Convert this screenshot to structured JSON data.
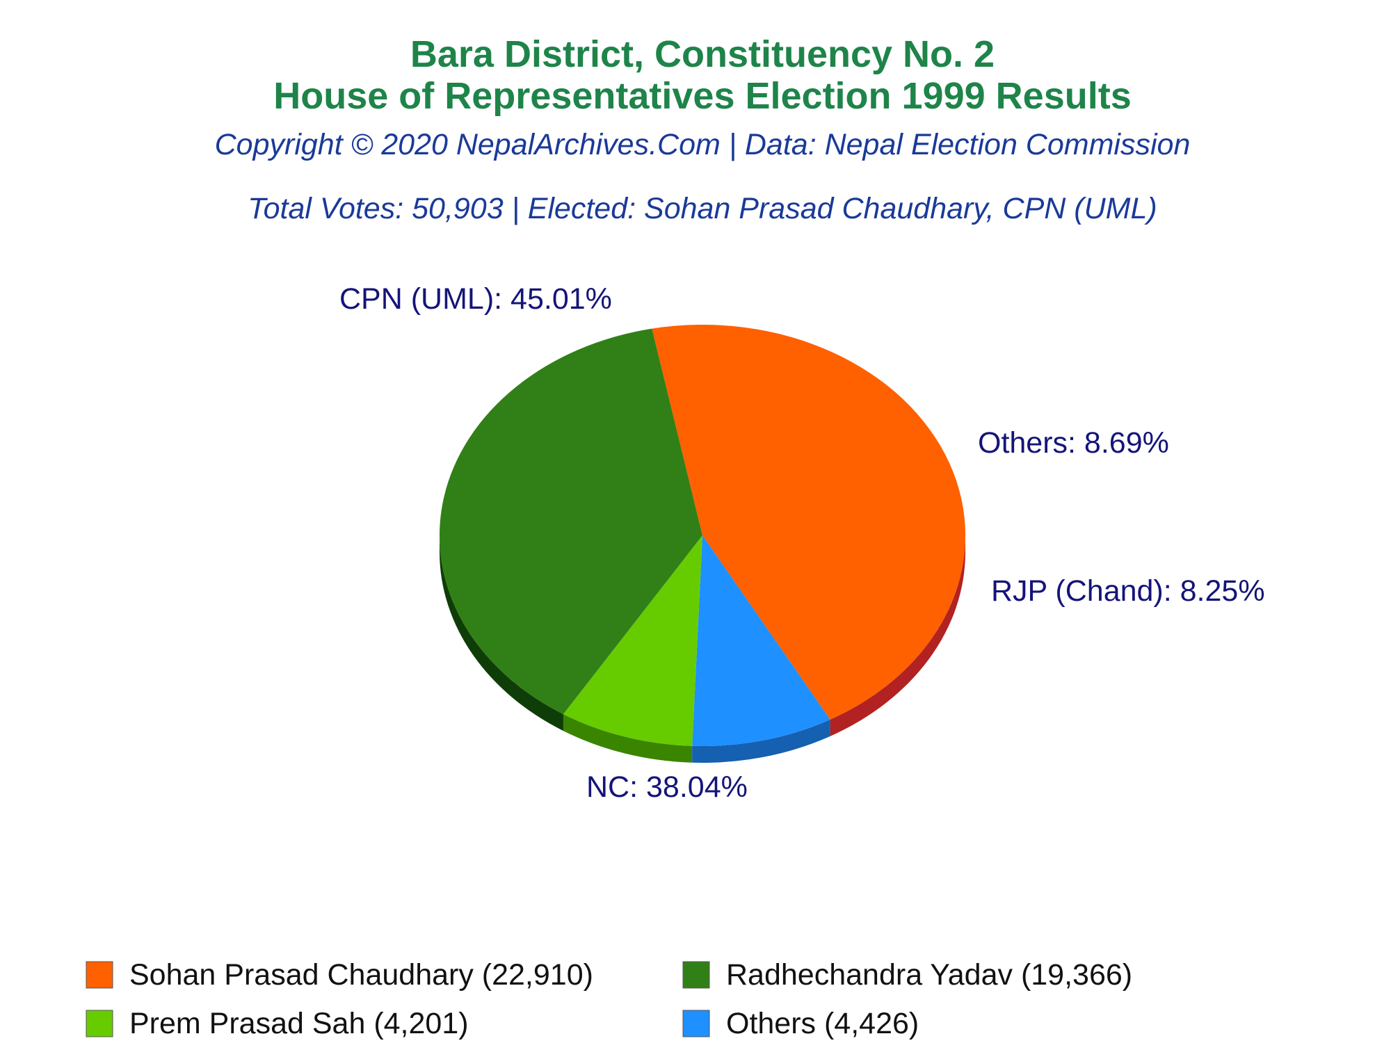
{
  "chart_data": {
    "type": "pie",
    "title_lines": [
      "Bara District, Constituency No. 2",
      "House of Representatives Election 1999 Results"
    ],
    "subtitle_lines": [
      "Copyright © 2020 NepalArchives.Com | Data: Nepal Election Commission",
      "Total Votes: 50,903 | Elected: Sohan Prasad Chaudhary, CPN (UML)"
    ],
    "slices": [
      {
        "label": "CPN (UML): 45.01%",
        "legend": "Sohan Prasad Chaudhary (22,910)",
        "value": 22910,
        "percent": 45.01,
        "color": "#ff6000",
        "side_color": "#b22222"
      },
      {
        "label": "NC: 38.04%",
        "legend": "Radhechandra Yadav (19,366)",
        "value": 19366,
        "percent": 38.04,
        "color": "#318017",
        "side_color": "#0f3d08"
      },
      {
        "label": "RJP (Chand): 8.25%",
        "legend": "Prem Prasad Sah (4,201)",
        "value": 4201,
        "percent": 8.25,
        "color": "#66cc00",
        "side_color": "#3a8500"
      },
      {
        "label": "Others: 8.69%",
        "legend": "Others (4,426)",
        "value": 4426,
        "percent": 8.69,
        "color": "#1e90ff",
        "side_color": "#1560b0"
      }
    ],
    "legend_placement": "bottom"
  }
}
